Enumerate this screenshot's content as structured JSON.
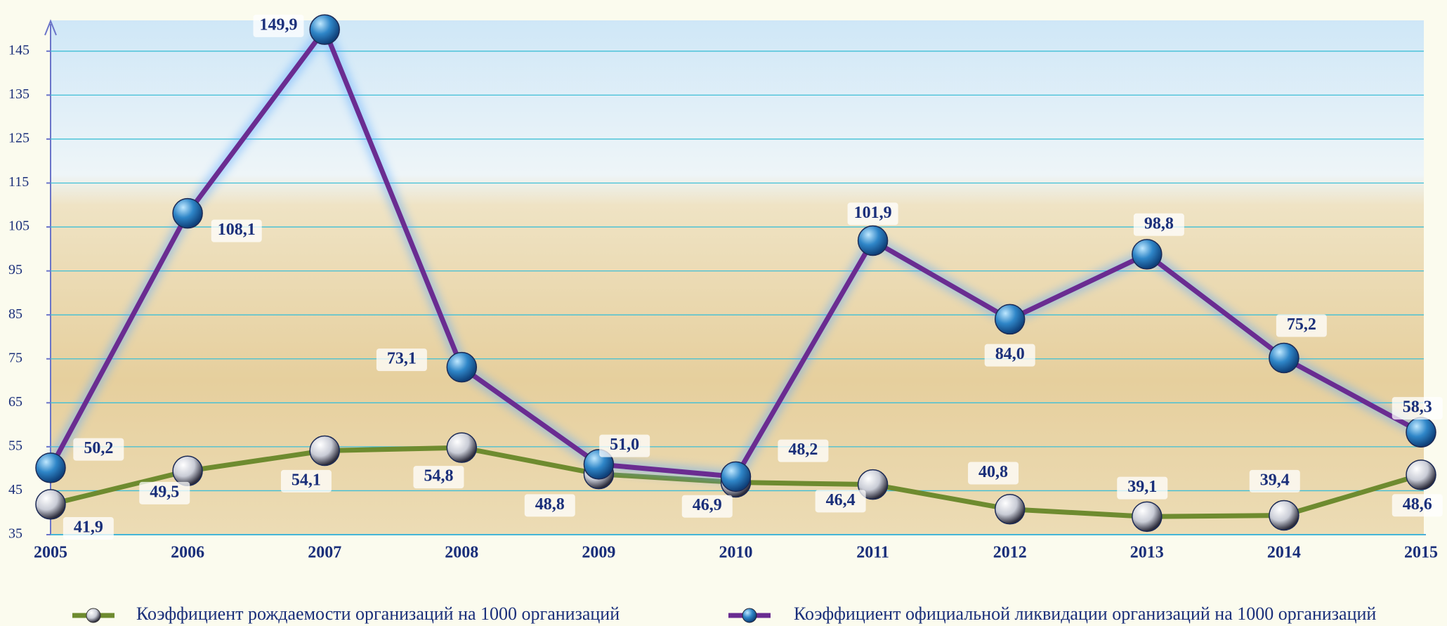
{
  "chart_data": {
    "type": "line",
    "categories": [
      "2005",
      "2006",
      "2007",
      "2008",
      "2009",
      "2010",
      "2011",
      "2012",
      "2013",
      "2014",
      "2015"
    ],
    "series": [
      {
        "name": "Коэффициент рождаемости организаций на 1000 организаций",
        "color": "#6e8b2f",
        "values": [
          41.9,
          49.5,
          54.1,
          54.8,
          48.8,
          46.9,
          46.4,
          40.8,
          39.1,
          39.4,
          48.6
        ],
        "value_labels": [
          "41,9",
          "49,5",
          "54,1",
          "54,8",
          "48,8",
          "46,9",
          "46,4",
          "40,8",
          "39,1",
          "39,4",
          "48,6"
        ]
      },
      {
        "name": "Коэффициент официальной ликвидации организаций на 1000 организаций",
        "color": "#6a2c91",
        "values": [
          50.2,
          108.1,
          149.9,
          73.1,
          51.0,
          48.2,
          101.9,
          84.0,
          98.8,
          75.2,
          58.3
        ],
        "value_labels": [
          "50,2",
          "108,1",
          "149,9",
          "73,1",
          "51,0",
          "48,2",
          "101,9",
          "84,0",
          "98,8",
          "75,2",
          "58,3"
        ]
      }
    ],
    "ylim": [
      35,
      152
    ],
    "yticks": [
      35,
      45,
      55,
      65,
      75,
      85,
      95,
      105,
      115,
      125,
      135,
      145
    ],
    "grid": true
  }
}
